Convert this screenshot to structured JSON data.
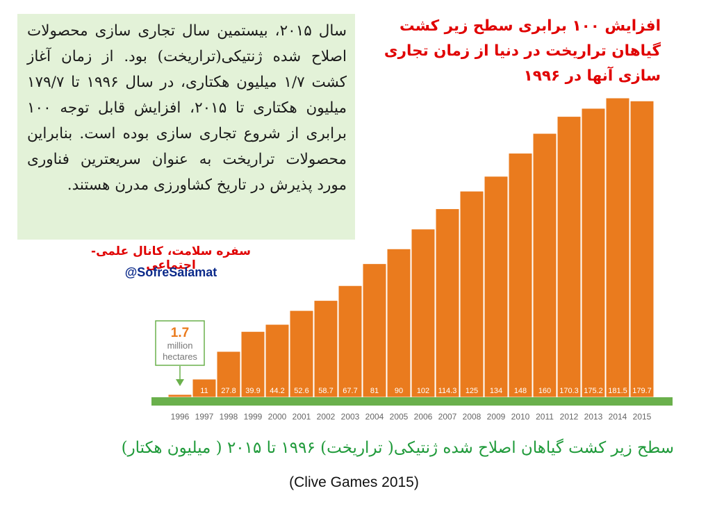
{
  "description_text": "سال ۲۰۱۵، بیستمین سال تجاری سازی محصولات اصلاح شده ژنتیکی(تراریخت) بود. از زمان آغاز کشت ۱/۷ میلیون هکتاری، در سال ۱۹۹۶ تا ۱۷۹/۷ میلیون هکتاری تا ۲۰۱۵، افزایش قابل توجه ۱۰۰ برابری از شروع تجاری سازی بوده است. بنابراین محصولات تراریخت به عنوان سریعترین فناوری مورد پذیرش در تاریخ کشاورزی مدرن هستند.",
  "headline": "افزایش ۱۰۰ برابری سطح زیر کشت گیاهان تراریخت در دنیا از زمان تجاری سازی آنها در ۱۹۹۶",
  "credit_line": "سفره سلامت، کانال علمی- اجتماعی",
  "credit_handle": "@SofreSalamat",
  "caption": "سطح زیر کشت گیاهان اصلاح شده ژنتیکی( تراریخت) ۱۹۹۶ تا ۲۰۱۵ ( میلیون هکتار)",
  "source": "(Clive Games 2015)",
  "colors": {
    "bar": "#ea7b1e",
    "ground": "#6ab04c",
    "callout_green": "#6ab04c",
    "callout_orange": "#ea7b1e",
    "year_text": "#666666"
  },
  "chart_data": {
    "type": "bar",
    "categories": [
      "1996",
      "1997",
      "1998",
      "1999",
      "2000",
      "2001",
      "2002",
      "2003",
      "2004",
      "2005",
      "2006",
      "2007",
      "2008",
      "2009",
      "2010",
      "2011",
      "2012",
      "2013",
      "2014",
      "2015"
    ],
    "values": [
      1.7,
      11,
      27.8,
      39.9,
      44.2,
      52.6,
      58.7,
      67.7,
      81,
      90,
      102,
      114.3,
      125,
      134,
      148,
      160,
      170.3,
      175.2,
      181.5,
      179.7
    ],
    "value_labels": [
      "",
      "11",
      "27.8",
      "39.9",
      "44.2",
      "52.6",
      "58.7",
      "67.7",
      "81",
      "90",
      "102",
      "114.3",
      "125",
      "134",
      "148",
      "160",
      "170.3",
      "175.2",
      "181.5",
      "179.7"
    ],
    "ylim": [
      0,
      181.5
    ],
    "callout": {
      "value": "1.7",
      "line1": "million",
      "line2": "hectares"
    }
  }
}
